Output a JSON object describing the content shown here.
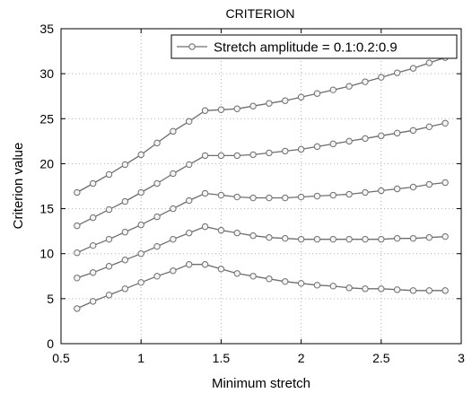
{
  "chart_data": {
    "type": "line",
    "title": "CRITERION",
    "xlabel": "Minimum stretch",
    "ylabel": "Criterion value",
    "xlim": [
      0.5,
      3
    ],
    "ylim": [
      0,
      35
    ],
    "grid": true,
    "legend_position": "top-right",
    "x_ticks": [
      "0.5",
      "1",
      "1.5",
      "2",
      "2.5",
      "3"
    ],
    "y_ticks": [
      "0",
      "5",
      "10",
      "15",
      "20",
      "25",
      "30",
      "35"
    ],
    "colors": {
      "line": "#6e6e6e",
      "marker_fill": "#f4f4f4"
    },
    "x": [
      0.6,
      0.7,
      0.8,
      0.9,
      1.0,
      1.1,
      1.2,
      1.3,
      1.4,
      1.5,
      1.6,
      1.7,
      1.8,
      1.9,
      2.0,
      2.1,
      2.2,
      2.3,
      2.4,
      2.5,
      2.6,
      2.7,
      2.8,
      2.9
    ],
    "series": [
      {
        "name": "Stretch amplitude = 0.1:0.2:0.9",
        "values": [
          16.8,
          17.8,
          18.8,
          19.9,
          21.0,
          22.3,
          23.6,
          24.7,
          25.9,
          26.0,
          26.1,
          26.4,
          26.7,
          27.0,
          27.4,
          27.8,
          28.2,
          28.6,
          29.1,
          29.6,
          30.1,
          30.6,
          31.2,
          31.8
        ]
      },
      {
        "values": [
          13.1,
          14.0,
          14.9,
          15.8,
          16.8,
          17.8,
          18.9,
          19.9,
          20.9,
          20.9,
          20.9,
          21.0,
          21.2,
          21.4,
          21.6,
          21.9,
          22.2,
          22.5,
          22.8,
          23.1,
          23.4,
          23.7,
          24.1,
          24.5
        ]
      },
      {
        "values": [
          10.1,
          10.9,
          11.6,
          12.4,
          13.2,
          14.1,
          15.0,
          15.9,
          16.7,
          16.5,
          16.3,
          16.2,
          16.2,
          16.2,
          16.3,
          16.4,
          16.5,
          16.6,
          16.8,
          17.0,
          17.2,
          17.4,
          17.7,
          17.9
        ]
      },
      {
        "values": [
          7.3,
          7.9,
          8.6,
          9.3,
          10.0,
          10.8,
          11.6,
          12.3,
          13.0,
          12.6,
          12.3,
          12.0,
          11.8,
          11.7,
          11.6,
          11.6,
          11.6,
          11.6,
          11.6,
          11.6,
          11.7,
          11.7,
          11.8,
          11.9
        ]
      },
      {
        "values": [
          3.9,
          4.7,
          5.4,
          6.1,
          6.8,
          7.5,
          8.1,
          8.8,
          8.8,
          8.3,
          7.8,
          7.5,
          7.2,
          6.9,
          6.7,
          6.5,
          6.4,
          6.2,
          6.1,
          6.1,
          6.0,
          5.9,
          5.9,
          5.9
        ]
      }
    ]
  }
}
